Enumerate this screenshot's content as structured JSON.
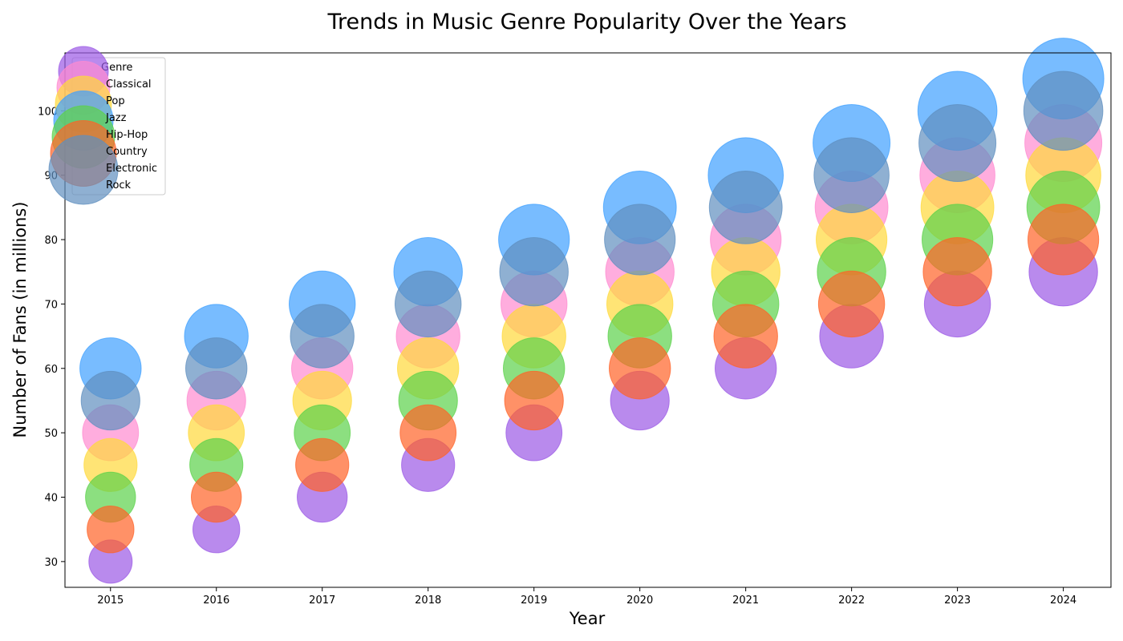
{
  "chart_data": {
    "type": "scatter",
    "title": "Trends in Music Genre Popularity Over the Years",
    "xlabel": "Year",
    "ylabel": "Number of Fans (in millions)",
    "x": [
      2015,
      2016,
      2017,
      2018,
      2019,
      2020,
      2021,
      2022,
      2023,
      2024
    ],
    "xlim": [
      2014.57,
      2024.45
    ],
    "ylim": [
      26,
      109
    ],
    "yticks": [
      30,
      40,
      50,
      60,
      70,
      80,
      90,
      100
    ],
    "bubble_size_encodes": "number of fans",
    "grid": false,
    "legend": {
      "title": "Genre",
      "placement": "upper-left"
    },
    "series": [
      {
        "name": "Classical",
        "color": "#9b59e6",
        "values": [
          30,
          35,
          40,
          45,
          50,
          55,
          60,
          65,
          70,
          75
        ]
      },
      {
        "name": "Pop",
        "color": "#ff8ad0",
        "values": [
          50,
          55,
          60,
          65,
          70,
          75,
          80,
          85,
          90,
          95
        ]
      },
      {
        "name": "Jazz",
        "color": "#ffd93b",
        "values": [
          45,
          50,
          55,
          60,
          65,
          70,
          75,
          80,
          85,
          90
        ]
      },
      {
        "name": "Hip-Hop",
        "color": "#3fa0ff",
        "values": [
          60,
          65,
          70,
          75,
          80,
          85,
          90,
          95,
          100,
          105
        ]
      },
      {
        "name": "Country",
        "color": "#5bd14a",
        "values": [
          40,
          45,
          50,
          55,
          60,
          65,
          70,
          75,
          80,
          85
        ]
      },
      {
        "name": "Electronic",
        "color": "#ff6227",
        "values": [
          35,
          40,
          45,
          50,
          55,
          60,
          65,
          70,
          75,
          80
        ]
      },
      {
        "name": "Rock",
        "color": "#5f8fbf",
        "values": [
          55,
          60,
          65,
          70,
          75,
          80,
          85,
          90,
          95,
          100
        ]
      }
    ],
    "draw_order": [
      "Classical",
      "Pop",
      "Jazz",
      "Hip-Hop",
      "Country",
      "Electronic",
      "Rock"
    ],
    "legend_order": [
      "Classical",
      "Pop",
      "Jazz",
      "Hip-Hop",
      "Country",
      "Electronic",
      "Rock"
    ]
  }
}
